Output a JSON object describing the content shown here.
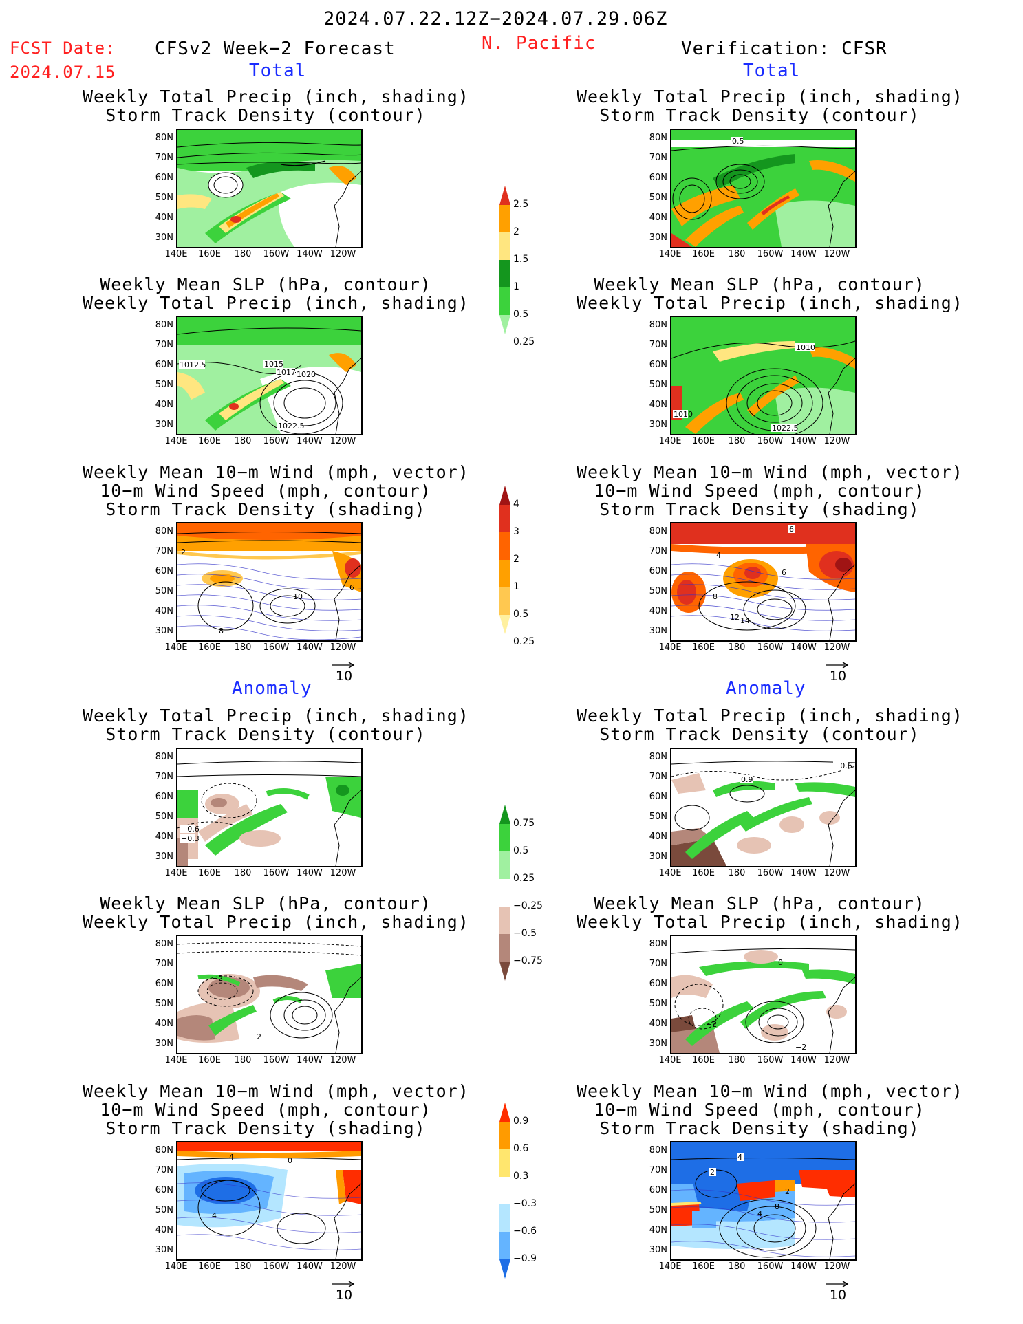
{
  "header": {
    "period": "2024.07.22.12Z−2024.07.29.06Z",
    "fcst_label": "FCST Date:",
    "fcst_date": "2024.07.15",
    "forecast_title": "CFSv2 Week−2 Forecast",
    "region": "N. Pacific",
    "verification_title": "Verification: CFSR"
  },
  "sections": {
    "total": "Total",
    "anomaly": "Anomaly"
  },
  "panel_titles": {
    "precip_storm": [
      "Weekly Total Precip (inch, shading)",
      "Storm Track Density (contour)"
    ],
    "slp_precip": [
      "Weekly Mean SLP (hPa, contour)",
      "Weekly Total Precip (inch, shading)"
    ],
    "wind": [
      "Weekly Mean 10−m Wind (mph, vector)",
      "10−m Wind Speed (mph, contour)",
      "Storm Track Density (shading)"
    ]
  },
  "axes": {
    "lat_labels": [
      "80N",
      "70N",
      "60N",
      "50N",
      "40N",
      "30N"
    ],
    "lon_labels": [
      "140E",
      "160E",
      "180",
      "160W",
      "140W",
      "120W"
    ]
  },
  "vector_reference": "10",
  "colorbars": {
    "precip_total": {
      "levels": [
        "2.5",
        "2",
        "1.5",
        "1",
        "0.5",
        "0.25"
      ],
      "colors": [
        "#e0301e",
        "#ffa000",
        "#ffe680",
        "#14961e",
        "#3cd23c",
        "#a0f0a0"
      ]
    },
    "storm_total": {
      "levels": [
        "4",
        "3",
        "2",
        "1",
        "0.5",
        "0.25"
      ],
      "colors": [
        "#a01414",
        "#e0301e",
        "#ff6400",
        "#ffa000",
        "#ffc850",
        "#fff0a0"
      ]
    },
    "precip_anom": {
      "levels": [
        "0.75",
        "0.5",
        "0.25",
        "−0.25",
        "−0.5",
        "−0.75"
      ],
      "colors": [
        "#14961e",
        "#3cd23c",
        "#a0f0a0",
        "#ffffff",
        "#e6c3b4",
        "#b4877a",
        "#7a4a3c"
      ]
    },
    "storm_anom": {
      "levels": [
        "0.9",
        "0.6",
        "0.3",
        "−0.3",
        "−0.6",
        "−0.9"
      ],
      "colors": [
        "#ff2d00",
        "#ff9b00",
        "#ffe66e",
        "#ffffff",
        "#b4e6ff",
        "#64b4ff",
        "#1e6ee6"
      ]
    }
  },
  "map_annotations": {
    "r_total_storm": [
      "0.5"
    ],
    "f_total_slp": [
      "1012.5",
      "1015",
      "1017",
      "1020",
      "1022.5"
    ],
    "r_total_slp": [
      "1010",
      "1010",
      "1022.5"
    ],
    "f_total_wind": [
      "2",
      "6",
      "10",
      "8"
    ],
    "r_total_wind": [
      "6",
      "4",
      "6",
      "8",
      "12",
      "14"
    ],
    "f_anom_storm": [
      "−0.6",
      "−0.3"
    ],
    "r_anom_storm": [
      "−0.6",
      "0.9"
    ],
    "f_anom_slp": [
      "2",
      "−2"
    ],
    "r_anom_slp": [
      "0",
      "−2",
      "−2"
    ],
    "f_anom_wind": [
      "4",
      "0",
      "4"
    ],
    "r_anom_wind": [
      "4",
      "2",
      "2",
      "8",
      "4"
    ]
  }
}
